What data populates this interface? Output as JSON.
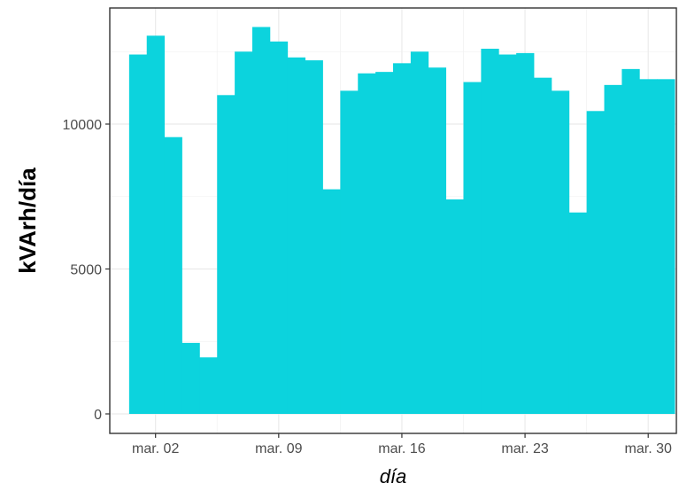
{
  "chart_data": {
    "type": "bar",
    "xlabel": "día",
    "ylabel": "kVArh/día",
    "ylim": [
      0,
      14000
    ],
    "grid": true,
    "legend": "none",
    "bar_color": "#0cd3dd",
    "x_start_day": 1,
    "x_range_days": [
      -0.6,
      31.6
    ],
    "categories": [
      "1",
      "2",
      "3",
      "4",
      "5",
      "6",
      "7",
      "8",
      "9",
      "10",
      "11",
      "12",
      "13",
      "14",
      "15",
      "16",
      "17",
      "18",
      "19",
      "20",
      "21",
      "22",
      "23",
      "24",
      "25",
      "26",
      "27",
      "28",
      "29",
      "30",
      "31"
    ],
    "values": [
      12400,
      13050,
      9550,
      2450,
      1950,
      11000,
      12500,
      13350,
      12850,
      12300,
      12200,
      7750,
      11150,
      11750,
      11800,
      12100,
      12500,
      11950,
      7400,
      11450,
      12600,
      12400,
      12450,
      11600,
      11150,
      6950,
      10450,
      11350,
      11900,
      11550,
      11550
    ],
    "y_ticks": [
      {
        "value": 0,
        "label": "0"
      },
      {
        "value": 5000,
        "label": "5000"
      },
      {
        "value": 10000,
        "label": "10000"
      }
    ],
    "x_ticks": [
      {
        "day": 2,
        "label": "mar. 02"
      },
      {
        "day": 9,
        "label": "mar. 09"
      },
      {
        "day": 16,
        "label": "mar. 16"
      },
      {
        "day": 23,
        "label": "mar. 23"
      },
      {
        "day": 30,
        "label": "mar. 30"
      }
    ]
  }
}
